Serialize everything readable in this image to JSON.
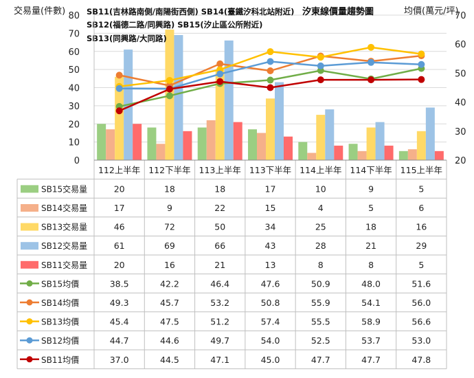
{
  "chart_data": {
    "type": "bar",
    "title": "汐東線價量趨勢圖",
    "ylabel_left": "交易量(件數)",
    "ylabel_right": "均價(萬元/坪)",
    "ylim_left": [
      0,
      80
    ],
    "ylim_right": [
      20,
      70
    ],
    "yticks_left": [
      "0",
      "10",
      "20",
      "30",
      "40",
      "50",
      "60",
      "70",
      "80"
    ],
    "yticks_right": [
      "20",
      "30",
      "40",
      "50",
      "60",
      "70"
    ],
    "legend_notes": [
      "SB11(吉林路南側/南陽街西側) SB14(臺鐵汐科北站附近)",
      "SB12(福德二路/同興路) SB15(汐止區公所附近)",
      "SB13(同興路/大同路)"
    ],
    "categories": [
      "112上半年",
      "112下半年",
      "113上半年",
      "113下半年",
      "114上半年",
      "114下半年",
      "115上半年"
    ],
    "bar_series": [
      {
        "name": "SB15交易量",
        "color": "#9bce82",
        "values": [
          20,
          18,
          18,
          17,
          10,
          9,
          5
        ]
      },
      {
        "name": "SB14交易量",
        "color": "#f5b08a",
        "values": [
          17,
          9,
          22,
          15,
          4,
          5,
          6
        ]
      },
      {
        "name": "SB13交易量",
        "color": "#ffd966",
        "values": [
          46,
          72,
          50,
          34,
          25,
          18,
          16
        ]
      },
      {
        "name": "SB12交易量",
        "color": "#9dc3e6",
        "values": [
          61,
          69,
          66,
          43,
          28,
          21,
          29
        ]
      },
      {
        "name": "SB11交易量",
        "color": "#ff6b6b",
        "values": [
          20,
          16,
          21,
          13,
          8,
          8,
          5
        ]
      }
    ],
    "line_series": [
      {
        "name": "SB15均價",
        "color": "#70ad47",
        "values": [
          38.5,
          42.2,
          46.4,
          47.6,
          50.9,
          48.0,
          51.6
        ],
        "labels": [
          "38.5",
          "42.2",
          "46.4",
          "47.6",
          "50.9",
          "48.0",
          "51.6"
        ]
      },
      {
        "name": "SB14均價",
        "color": "#ed7d31",
        "values": [
          49.3,
          45.7,
          53.2,
          50.8,
          55.9,
          54.1,
          56.0
        ],
        "labels": [
          "49.3",
          "45.7",
          "53.2",
          "50.8",
          "55.9",
          "54.1",
          "56.0"
        ]
      },
      {
        "name": "SB13均價",
        "color": "#ffc000",
        "values": [
          45.4,
          47.5,
          51.2,
          57.4,
          55.5,
          58.9,
          56.6
        ],
        "labels": [
          "45.4",
          "47.5",
          "51.2",
          "57.4",
          "55.5",
          "58.9",
          "56.6"
        ]
      },
      {
        "name": "SB12均價",
        "color": "#5b9bd5",
        "values": [
          44.7,
          44.6,
          49.7,
          54.0,
          52.5,
          53.7,
          53.0
        ],
        "labels": [
          "44.7",
          "44.6",
          "49.7",
          "54.0",
          "52.5",
          "53.7",
          "53.0"
        ]
      },
      {
        "name": "SB11均價",
        "color": "#c00000",
        "values": [
          37.0,
          44.5,
          47.1,
          45.0,
          47.7,
          47.7,
          47.8
        ],
        "labels": [
          "37.0",
          "44.5",
          "47.1",
          "45.0",
          "47.7",
          "47.7",
          "47.8"
        ]
      }
    ]
  }
}
